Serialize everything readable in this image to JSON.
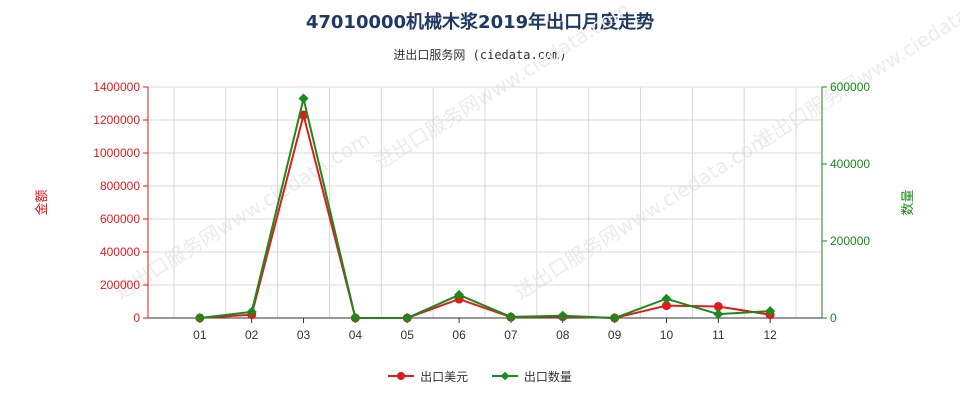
{
  "title": "47010000机械木浆2019年出口月度走势",
  "subtitle": "进出口服务网 (ciedata.com)",
  "watermark": "进出口服务网www.ciedata.com",
  "colors": {
    "amount": "#e31a1c",
    "quantity": "#1a8a1a",
    "grid": "#d9d9d9",
    "title": "#1f3864"
  },
  "chart_data": {
    "type": "line",
    "categories": [
      "01",
      "02",
      "03",
      "04",
      "05",
      "06",
      "07",
      "08",
      "09",
      "10",
      "11",
      "12"
    ],
    "y_left": {
      "label": "金额",
      "range": [
        0,
        1400000
      ],
      "ticks": [
        0,
        200000,
        400000,
        600000,
        800000,
        1000000,
        1200000,
        1400000
      ]
    },
    "y_right": {
      "label": "数量",
      "range": [
        0,
        600000
      ],
      "ticks": [
        0,
        200000,
        400000,
        600000
      ]
    },
    "series": [
      {
        "name": "出口美元",
        "axis": "left",
        "marker": "circle",
        "values": [
          0,
          20000,
          1230000,
          0,
          0,
          115000,
          5000,
          8000,
          0,
          75000,
          70000,
          20000
        ]
      },
      {
        "name": "出口数量",
        "axis": "right",
        "marker": "diamond",
        "values": [
          0,
          16000,
          570000,
          0,
          0,
          60000,
          3000,
          6000,
          0,
          50000,
          10000,
          18000
        ]
      }
    ],
    "grid": true,
    "legend_position": "bottom"
  }
}
